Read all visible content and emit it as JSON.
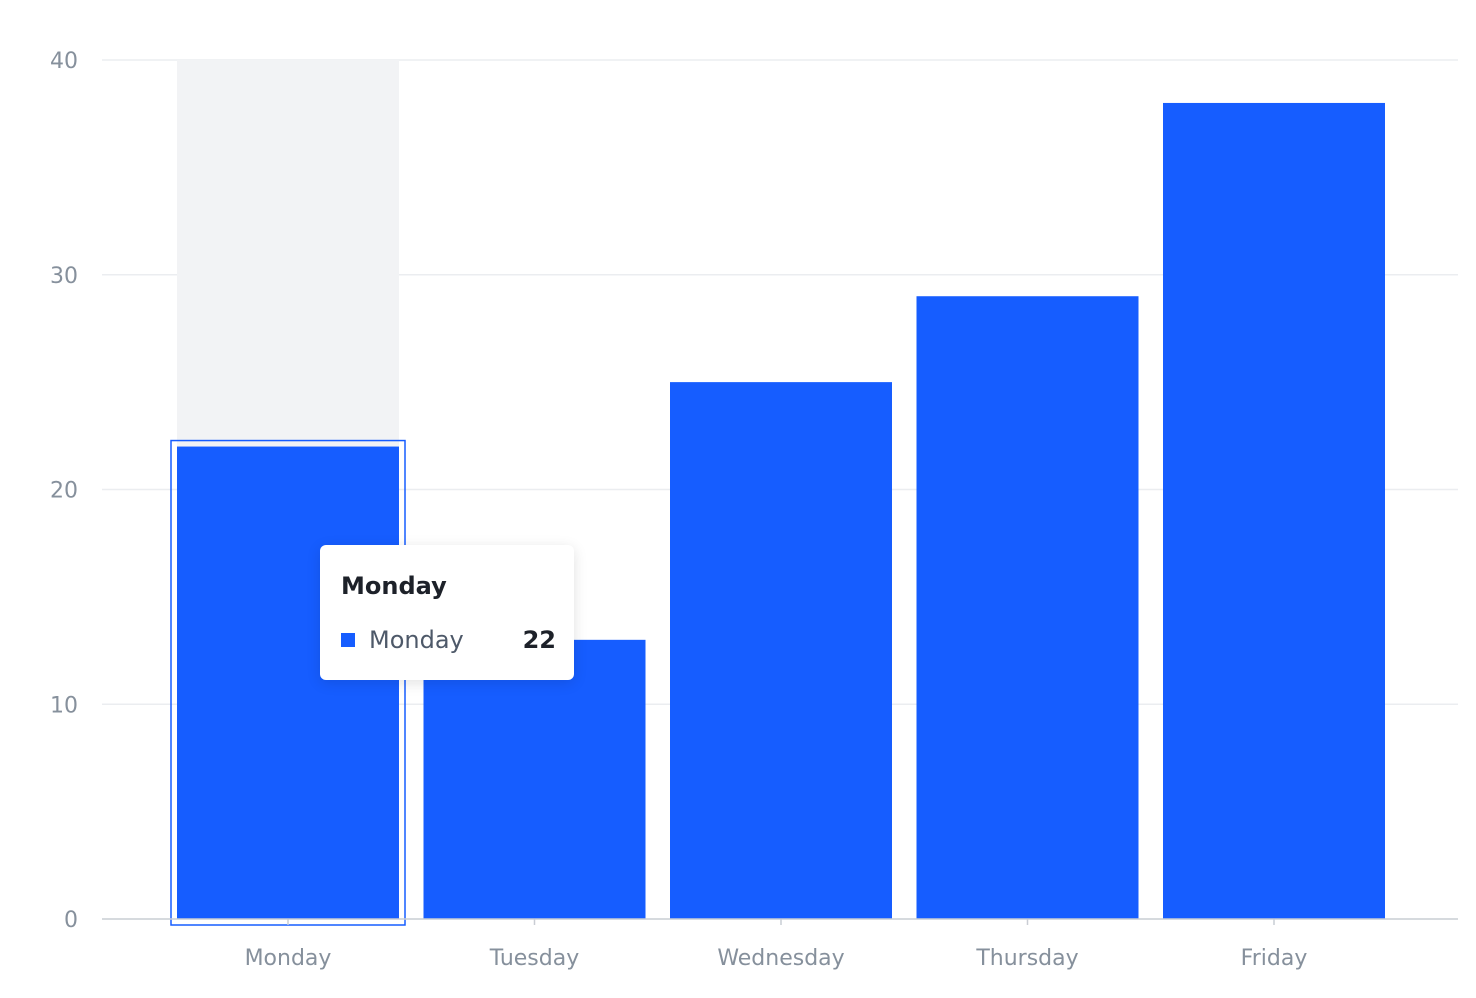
{
  "chart_data": {
    "type": "bar",
    "categories": [
      "Monday",
      "Tuesday",
      "Wednesday",
      "Thursday",
      "Friday"
    ],
    "values": [
      22,
      13,
      25,
      29,
      38
    ],
    "ylim": [
      0,
      40
    ],
    "yticks": [
      0,
      10,
      20,
      30,
      40
    ],
    "grid": true,
    "bar_color": "#165dff",
    "highlighted_category": "Monday"
  },
  "tooltip": {
    "title": "Monday",
    "label": "Monday",
    "value": "22",
    "marker_color": "#165dff"
  },
  "colors": {
    "bar": "#165dff",
    "grid": "#ebedf0",
    "axis_line": "#c9cdd4",
    "tick_label": "#86909c",
    "hover_band": "#f2f3f5",
    "highlight_border": "#165dff"
  }
}
